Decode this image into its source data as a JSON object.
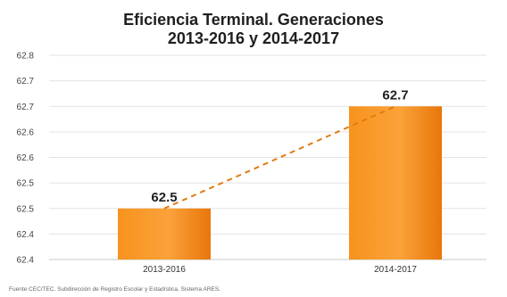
{
  "chart_data": {
    "type": "bar",
    "title": [
      "Eficiencia Terminal. Generaciones",
      "2013-2016 y 2014-2017"
    ],
    "categories": [
      "2013-2016",
      "2014-2017"
    ],
    "values": [
      62.5,
      62.7
    ],
    "data_labels": [
      "62.5",
      "62.7"
    ],
    "y_tick_labels": [
      "62.8",
      "62.7",
      "62.7",
      "62.6",
      "62.6",
      "62.5",
      "62.5",
      "62.4",
      "62.4"
    ],
    "ylim": [
      62.4,
      62.8
    ],
    "grid": true,
    "trend_line": "dashed",
    "bar_color": "#f7931e",
    "bar_color_dark": "#e8760a",
    "trend_color": "#e07b12",
    "source": "Fuente CEC/TEC. Subdirección de Registro Escolar y Estadística, Sistema ARES."
  }
}
